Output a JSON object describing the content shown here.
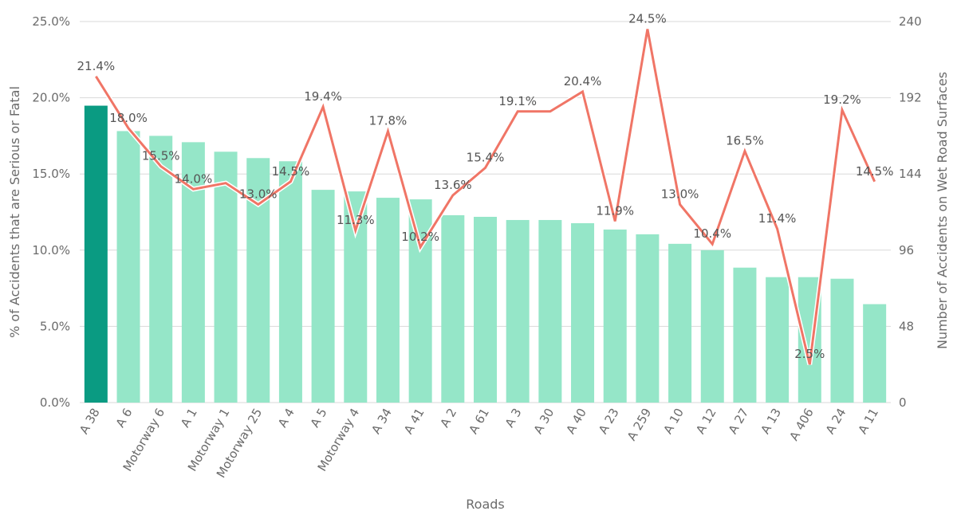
{
  "chart_data": {
    "type": "bar+line",
    "xlabel": "Roads",
    "ylabel": "% of Accidents that are Serious or Fatal",
    "y2label": "Number of Accidents on Wet Road Surfaces",
    "categories": [
      "A 38",
      "A 6",
      "Motorway 6",
      "A 1",
      "Motorway 1",
      "Motorway 25",
      "A 4",
      "A 5",
      "Motorway 4",
      "A 34",
      "A 41",
      "A 2",
      "A 61",
      "A 3",
      "A 30",
      "A 40",
      "A 23",
      "A 259",
      "A 10",
      "A 12",
      "A 27",
      "A 13",
      "A 406",
      "A 24",
      "A 11"
    ],
    "ylim": [
      0,
      25
    ],
    "y2lim": [
      0,
      240
    ],
    "y_ticks": [
      "0.0%",
      "5.0%",
      "10.0%",
      "15.0%",
      "20.0%",
      "25.0%"
    ],
    "y2_ticks": [
      "0",
      "48",
      "96",
      "144",
      "192",
      "240"
    ],
    "grid": true,
    "series": [
      {
        "axis": "right",
        "kind": "bar",
        "values": [
          187,
          171,
          168,
          164,
          158,
          154,
          152,
          134,
          133,
          129,
          128,
          118,
          117,
          115,
          115,
          113,
          109,
          106,
          100,
          96,
          85,
          79,
          79,
          78,
          62
        ],
        "highlight_index": 0,
        "color": "#95e6c8",
        "highlight_color": "#0a9b82"
      },
      {
        "axis": "left",
        "kind": "line",
        "values": [
          21.4,
          18.0,
          15.5,
          14.0,
          14.4,
          13.0,
          14.5,
          19.4,
          11.3,
          17.8,
          10.2,
          13.6,
          15.4,
          19.1,
          19.1,
          20.4,
          11.9,
          24.5,
          13.0,
          10.4,
          16.5,
          11.4,
          2.5,
          19.2,
          14.5
        ],
        "labels": [
          "21.4%",
          "18.0%",
          "15.5%",
          "14.0%",
          "",
          "13.0%",
          "14.5%",
          "19.4%",
          "11.3%",
          "17.8%",
          "10.2%",
          "13.6%",
          "15.4%",
          "19.1%",
          "",
          "20.4%",
          "11.9%",
          "24.5%",
          "13.0%",
          "10.4%",
          "16.5%",
          "11.4%",
          "2.5%",
          "19.2%",
          "14.5%"
        ],
        "color": "#f07566"
      }
    ]
  }
}
